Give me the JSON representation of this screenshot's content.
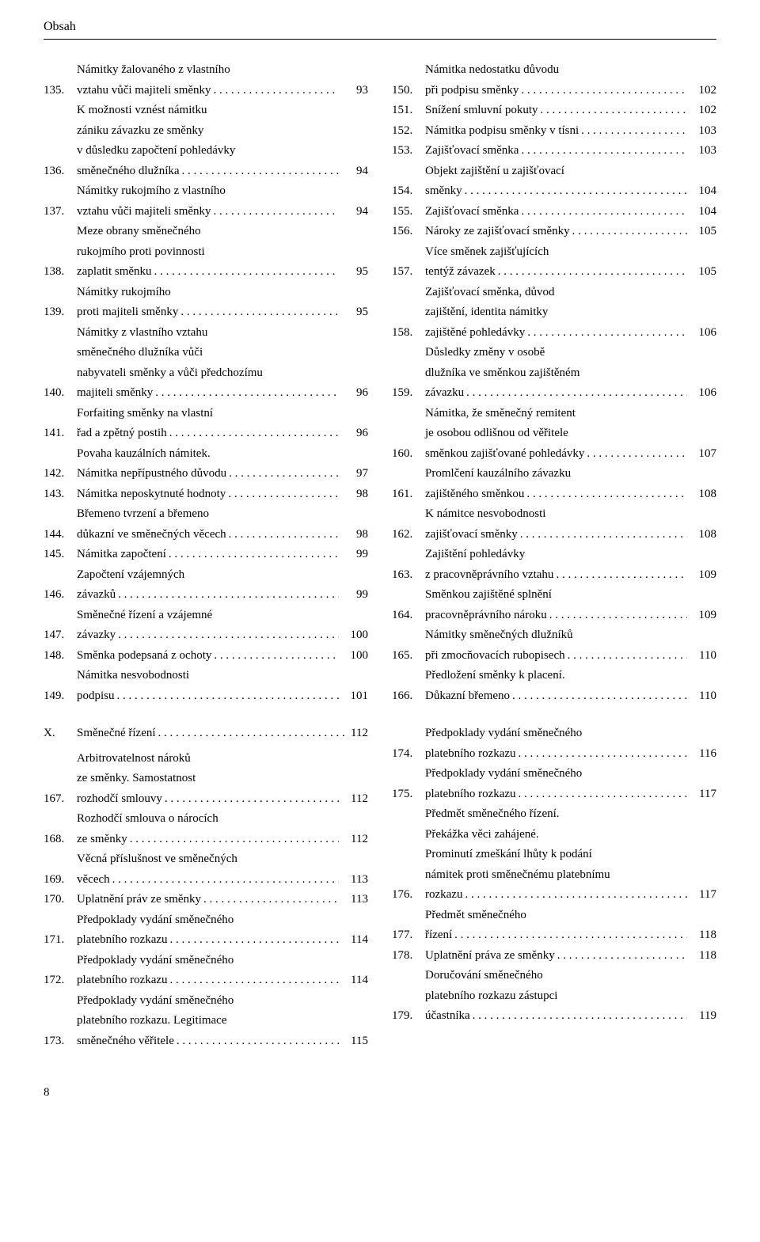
{
  "header": "Obsah",
  "footer_page": "8",
  "col1_top": [
    {
      "n": "135.",
      "lines": [
        "Námitky žalovaného z vlastního"
      ],
      "last": "vztahu vůči majiteli směnky",
      "p": "93"
    },
    {
      "n": "136.",
      "lines": [
        "K možnosti vznést námitku",
        "zániku závazku ze směnky",
        "v důsledku započtení pohledávky"
      ],
      "last": "směnečného dlužníka",
      "p": "94"
    },
    {
      "n": "137.",
      "lines": [
        "Námitky rukojmího z vlastního"
      ],
      "last": "vztahu vůči majiteli směnky",
      "p": "94"
    },
    {
      "n": "138.",
      "lines": [
        "Meze obrany směnečného",
        "rukojmího proti povinnosti"
      ],
      "last": "zaplatit směnku",
      "p": "95"
    },
    {
      "n": "139.",
      "lines": [
        "Námitky rukojmího"
      ],
      "last": "proti majiteli směnky",
      "p": "95"
    },
    {
      "n": "140.",
      "lines": [
        "Námitky z vlastního vztahu",
        "směnečného dlužníka vůči",
        "nabyvateli směnky a vůči předchozímu"
      ],
      "last": "majiteli směnky",
      "p": "96"
    },
    {
      "n": "141.",
      "lines": [
        "Forfaiting směnky na vlastní"
      ],
      "last": "řad a zpětný postih",
      "p": "96"
    },
    {
      "n": "142.",
      "lines": [
        "Povaha kauzálních námitek."
      ],
      "last": "Námitka nepřípustného důvodu",
      "p": "97"
    },
    {
      "n": "143.",
      "lines": [],
      "last": "Námitka neposkytnuté hodnoty",
      "p": "98"
    },
    {
      "n": "144.",
      "lines": [
        "Břemeno tvrzení a břemeno"
      ],
      "last": "důkazní ve směnečných věcech",
      "p": "98"
    },
    {
      "n": "145.",
      "lines": [],
      "last": "Námitka započtení",
      "p": "99"
    },
    {
      "n": "146.",
      "lines": [
        "Započtení vzájemných"
      ],
      "last": "závazků",
      "p": "99"
    },
    {
      "n": "147.",
      "lines": [
        "Směnečné řízení a vzájemné"
      ],
      "last": "závazky",
      "p": "100"
    },
    {
      "n": "148.",
      "lines": [],
      "last": "Směnka podepsaná z ochoty",
      "p": "100"
    },
    {
      "n": "149.",
      "lines": [
        "Námitka nesvobodnosti"
      ],
      "last": "podpisu",
      "p": "101"
    }
  ],
  "col2_top": [
    {
      "n": "150.",
      "lines": [
        "Námitka nedostatku důvodu"
      ],
      "last": "při podpisu směnky",
      "p": "102"
    },
    {
      "n": "151.",
      "lines": [],
      "last": "Snížení smluvní pokuty",
      "p": "102"
    },
    {
      "n": "152.",
      "lines": [],
      "last": "Námitka podpisu směnky v tísni",
      "p": "103"
    },
    {
      "n": "153.",
      "lines": [],
      "last": "Zajišťovací směnka",
      "p": "103"
    },
    {
      "n": "154.",
      "lines": [
        "Objekt zajištění u zajišťovací"
      ],
      "last": "směnky",
      "p": "104"
    },
    {
      "n": "155.",
      "lines": [],
      "last": "Zajišťovací směnka",
      "p": "104"
    },
    {
      "n": "156.",
      "lines": [],
      "last": "Nároky ze zajišťovací směnky",
      "p": "105"
    },
    {
      "n": "157.",
      "lines": [
        "Více směnek zajišťujících"
      ],
      "last": "tentýž závazek",
      "p": "105"
    },
    {
      "n": "158.",
      "lines": [
        "Zajišťovací směnka, důvod",
        "zajištění, identita námitky"
      ],
      "last": "zajištěné pohledávky",
      "p": "106"
    },
    {
      "n": "159.",
      "lines": [
        "Důsledky změny v osobě",
        "dlužníka ve směnkou zajištěném"
      ],
      "last": "závazku",
      "p": "106"
    },
    {
      "n": "160.",
      "lines": [
        "Námitka, že směnečný remitent",
        "je osobou odlišnou od věřitele"
      ],
      "last": "směnkou zajišťované pohledávky",
      "p": "107"
    },
    {
      "n": "161.",
      "lines": [
        "Promlčení kauzálního závazku"
      ],
      "last": "zajištěného směnkou",
      "p": "108"
    },
    {
      "n": "162.",
      "lines": [
        "K námitce nesvobodnosti"
      ],
      "last": "zajišťovací směnky",
      "p": "108"
    },
    {
      "n": "163.",
      "lines": [
        "Zajištění pohledávky"
      ],
      "last": "z pracovněprávního vztahu",
      "p": "109"
    },
    {
      "n": "164.",
      "lines": [
        "Směnkou zajištěné splnění"
      ],
      "last": "pracovněprávního nároku",
      "p": "109"
    },
    {
      "n": "165.",
      "lines": [
        "Námitky směnečných dlužníků"
      ],
      "last": "při zmocňovacích rubopisech",
      "p": "110"
    },
    {
      "n": "166.",
      "lines": [
        "Předložení směnky k placení."
      ],
      "last": "Důkazní břemeno",
      "p": "110"
    }
  ],
  "chapter": {
    "num": "X.",
    "title": "Směnečné řízení",
    "p": "112"
  },
  "col1_bot": [
    {
      "n": "167.",
      "lines": [
        "Arbitrovatelnost nároků",
        "ze směnky. Samostatnost"
      ],
      "last": "rozhodčí smlouvy",
      "p": "112"
    },
    {
      "n": "168.",
      "lines": [
        "Rozhodčí smlouva o nárocích"
      ],
      "last": "ze směnky",
      "p": "112"
    },
    {
      "n": "169.",
      "lines": [
        "Věcná příslušnost ve směnečných"
      ],
      "last": "věcech",
      "p": "113"
    },
    {
      "n": "170.",
      "lines": [],
      "last": "Uplatnění práv ze směnky",
      "p": "113"
    },
    {
      "n": "171.",
      "lines": [
        "Předpoklady vydání směnečného"
      ],
      "last": "platebního rozkazu",
      "p": "114"
    },
    {
      "n": "172.",
      "lines": [
        "Předpoklady vydání směnečného"
      ],
      "last": "platebního rozkazu",
      "p": "114"
    },
    {
      "n": "173.",
      "lines": [
        "Předpoklady vydání směnečného",
        "platebního rozkazu. Legitimace"
      ],
      "last": "směnečného věřitele",
      "p": "115"
    }
  ],
  "col2_bot": [
    {
      "n": "174.",
      "lines": [
        "Předpoklady vydání směnečného"
      ],
      "last": "platebního rozkazu",
      "p": "116"
    },
    {
      "n": "175.",
      "lines": [
        "Předpoklady vydání směnečného"
      ],
      "last": "platebního rozkazu",
      "p": "117"
    },
    {
      "n": "176.",
      "lines": [
        "Předmět směnečného řízení.",
        "Překážka věci zahájené.",
        "Prominutí zmeškání lhůty k podání",
        "námitek proti směnečnému platebnímu"
      ],
      "last": "rozkazu",
      "p": "117"
    },
    {
      "n": "177.",
      "lines": [
        "Předmět směnečného"
      ],
      "last": "řízení",
      "p": "118"
    },
    {
      "n": "178.",
      "lines": [],
      "last": "Uplatnění práva ze směnky",
      "p": "118"
    },
    {
      "n": "179.",
      "lines": [
        "Doručování směnečného",
        "platebního rozkazu zástupci"
      ],
      "last": "účastníka",
      "p": "119"
    }
  ]
}
